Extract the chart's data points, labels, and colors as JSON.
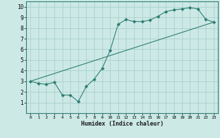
{
  "xlabel": "Humidex (Indice chaleur)",
  "ylabel": "",
  "xlim": [
    -0.5,
    23.5
  ],
  "ylim": [
    0,
    10.5
  ],
  "xticks": [
    0,
    1,
    2,
    3,
    4,
    5,
    6,
    7,
    8,
    9,
    10,
    11,
    12,
    13,
    14,
    15,
    16,
    17,
    18,
    19,
    20,
    21,
    22,
    23
  ],
  "yticks": [
    1,
    2,
    3,
    4,
    5,
    6,
    7,
    8,
    9,
    10
  ],
  "background_color": "#cce9e6",
  "grid_color": "#aacfcc",
  "line_color": "#2e7d72",
  "line1_x": [
    0,
    1,
    2,
    3,
    4,
    5,
    6,
    7,
    8,
    9,
    10,
    11,
    12,
    13,
    14,
    15,
    16,
    17,
    18,
    19,
    20,
    21,
    22,
    23
  ],
  "line1_y": [
    3.0,
    2.8,
    2.7,
    2.9,
    1.7,
    1.7,
    1.1,
    2.5,
    3.2,
    4.2,
    5.9,
    8.35,
    8.8,
    8.6,
    8.6,
    8.75,
    9.1,
    9.55,
    9.7,
    9.8,
    9.9,
    9.8,
    8.8,
    8.55
  ],
  "line2_x": [
    0,
    23
  ],
  "line2_y": [
    3.0,
    8.55
  ],
  "marker": "D",
  "markersize": 2.2
}
